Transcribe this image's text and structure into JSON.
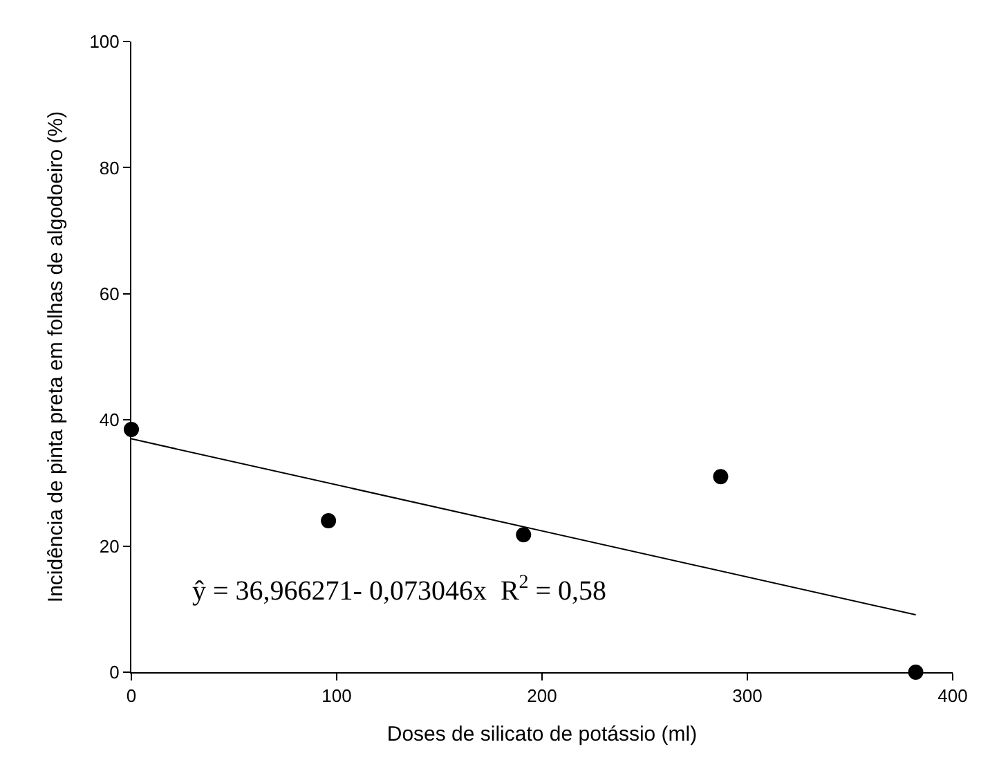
{
  "chart_data": {
    "type": "scatter",
    "xlabel": "Doses de silicato de potássio (ml)",
    "ylabel": "Incidência de pinta preta em folhas de algodoeiro (%)",
    "x": [
      0,
      96,
      191,
      287,
      382
    ],
    "series": [
      {
        "color": "#000000",
        "marker": "circle",
        "values": [
          38.5,
          24,
          21.8,
          31,
          0
        ]
      },
      {
        "type": "line",
        "color": "#000000",
        "marker": "none",
        "x": [
          0,
          382
        ],
        "values": [
          37,
          9.1
        ]
      }
    ],
    "xlim": [
      0,
      400
    ],
    "xticks": [
      0,
      100,
      200,
      300,
      400
    ],
    "ylim": [
      0,
      100
    ],
    "yticks": [
      0,
      20,
      40,
      60,
      80,
      100
    ],
    "annotations": [
      "ŷ = 36,966271- 0,073046x  R$^{2}$ = 0,58"
    ]
  }
}
